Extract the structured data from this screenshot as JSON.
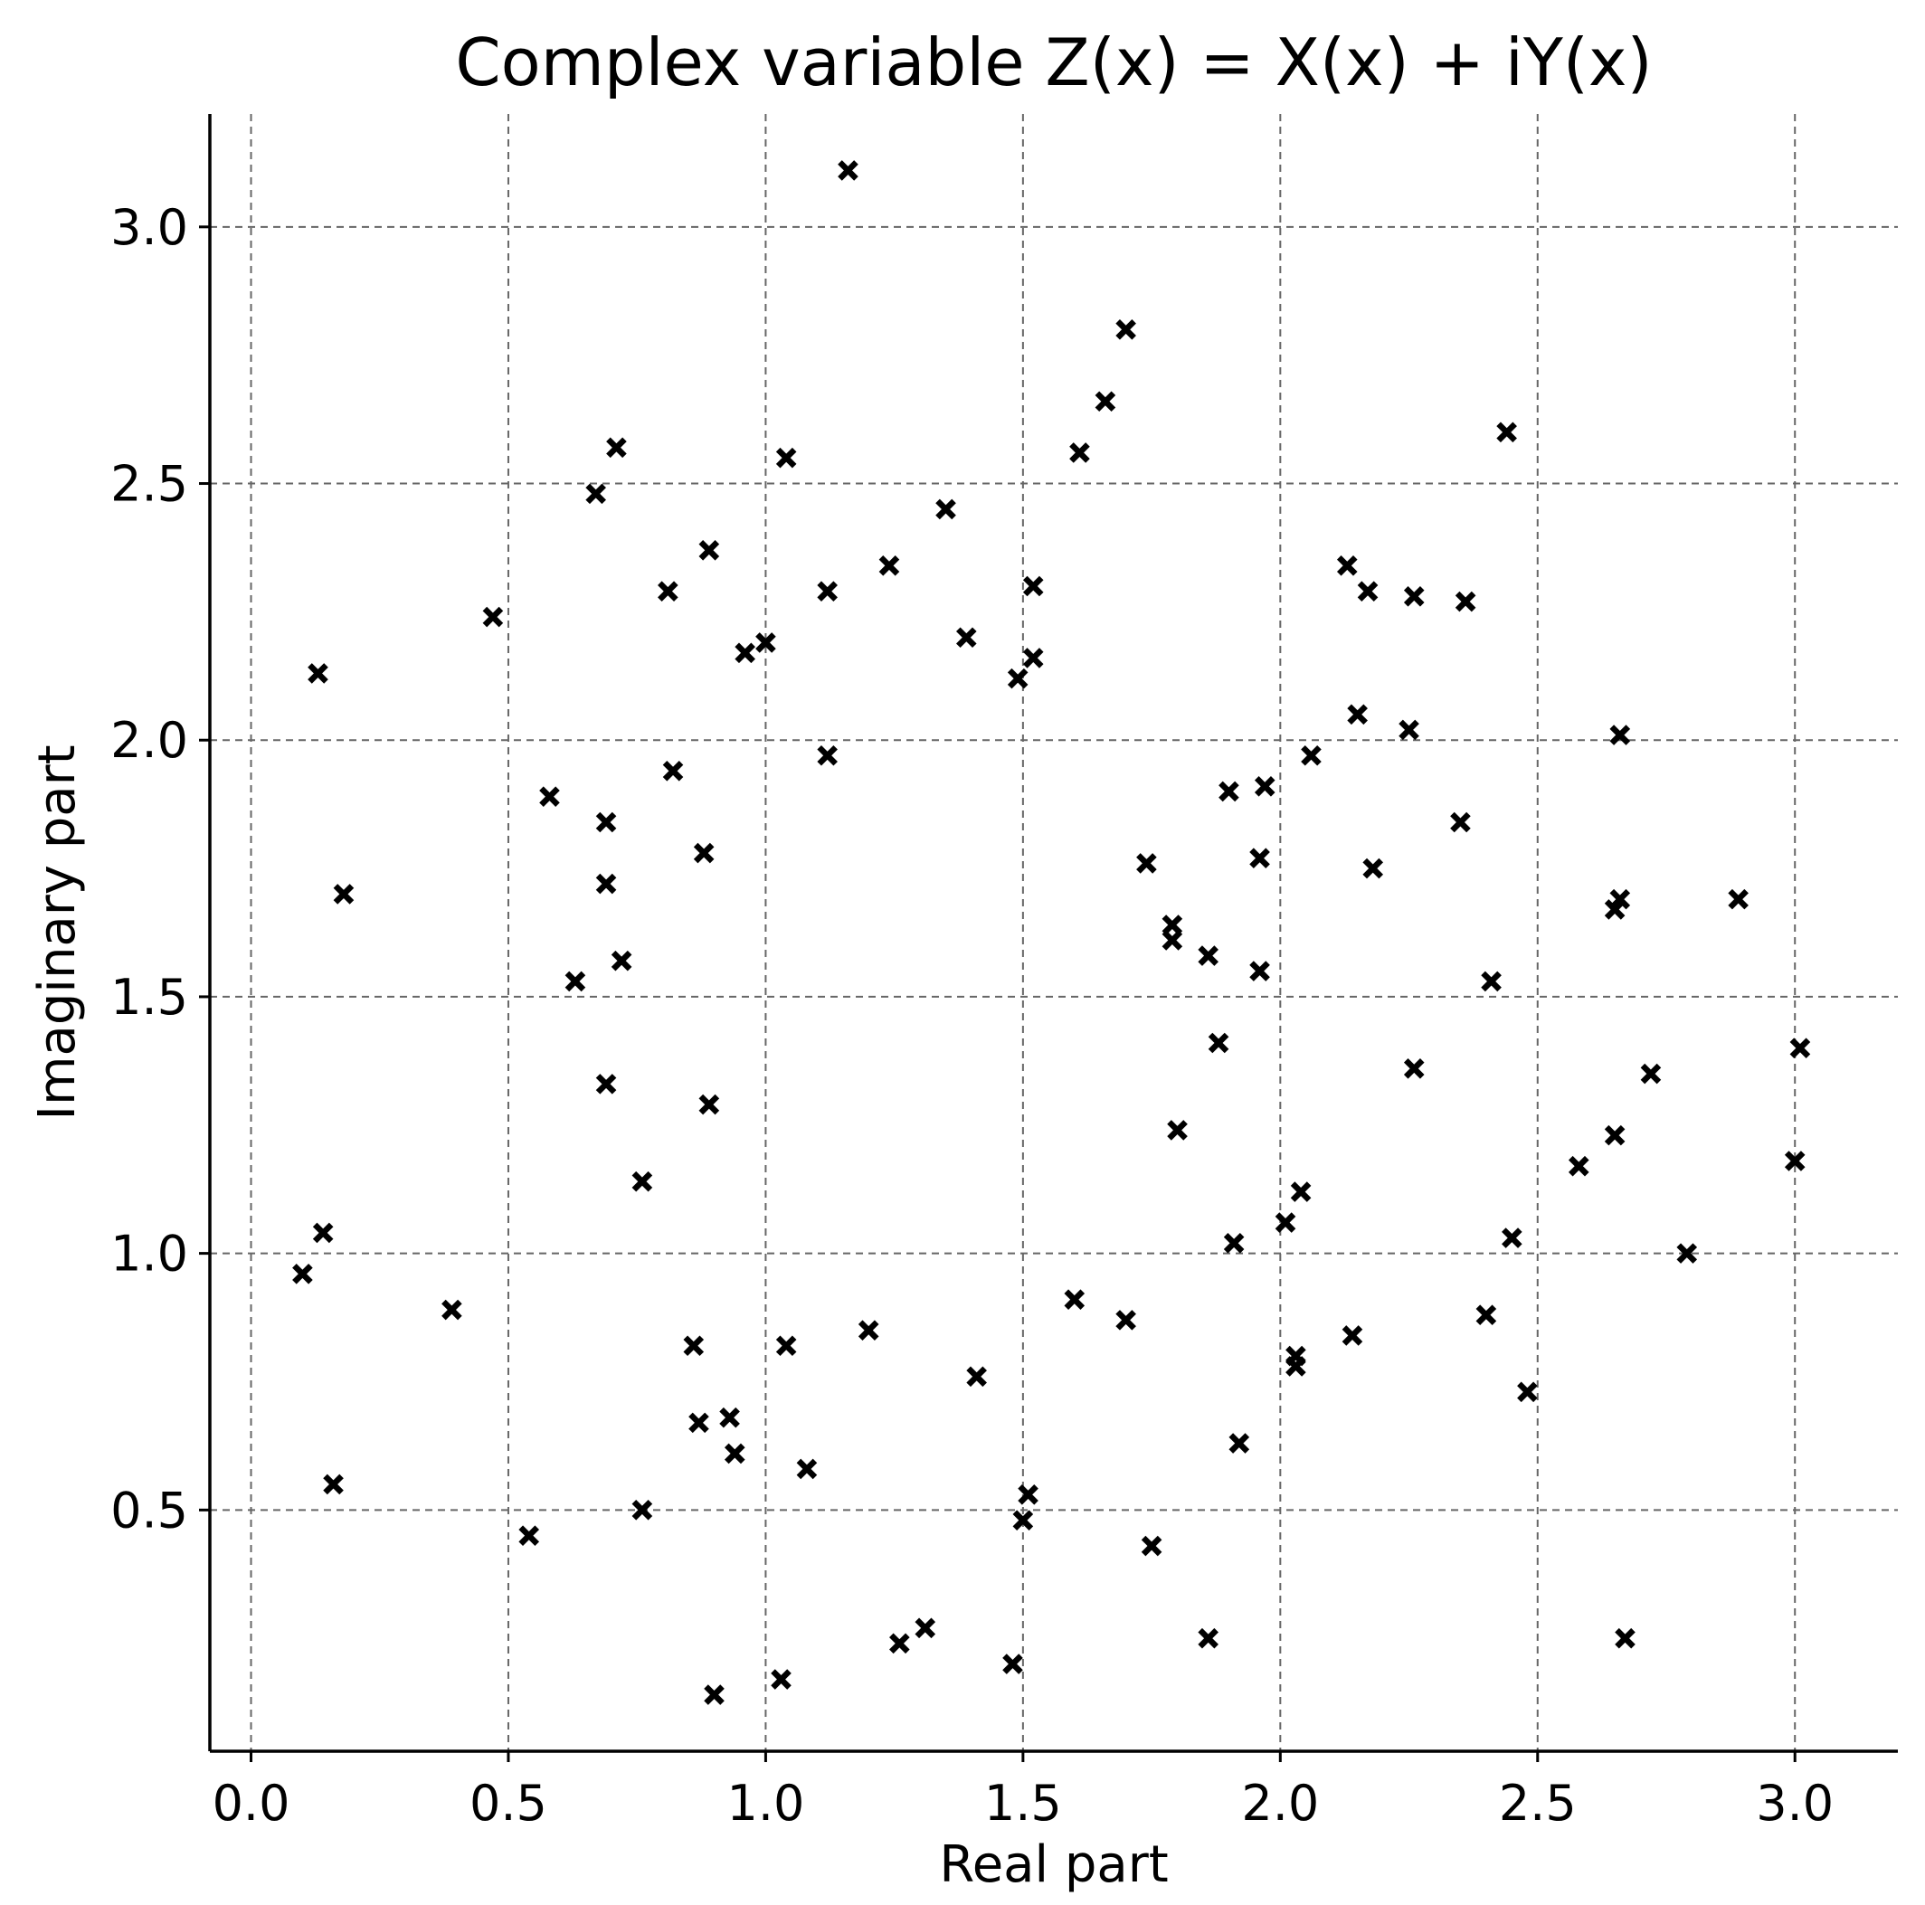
{
  "chart_data": {
    "type": "scatter",
    "title": "Complex variable Z(x) = X(x) + iY(x)",
    "xlabel": "Real part",
    "ylabel": "Imaginary part",
    "xlim": [
      -0.08,
      3.2
    ],
    "ylim": [
      0.03,
      3.22
    ],
    "xticks": [
      0.0,
      0.5,
      1.0,
      1.5,
      2.0,
      2.5,
      3.0
    ],
    "yticks": [
      0.5,
      1.0,
      1.5,
      2.0,
      2.5,
      3.0
    ],
    "xtick_labels": [
      "0.0",
      "0.5",
      "1.0",
      "1.5",
      "2.0",
      "2.5",
      "3.0"
    ],
    "ytick_labels": [
      "0.5",
      "1.0",
      "1.5",
      "2.0",
      "2.5",
      "3.0"
    ],
    "grid": true,
    "marker": "x",
    "marker_color": "#000000",
    "grid_color": "#666666",
    "points": [
      [
        1.16,
        3.11
      ],
      [
        1.7,
        2.8
      ],
      [
        1.66,
        2.66
      ],
      [
        2.44,
        2.6
      ],
      [
        1.61,
        2.56
      ],
      [
        0.71,
        2.57
      ],
      [
        1.04,
        2.55
      ],
      [
        0.67,
        2.48
      ],
      [
        1.35,
        2.45
      ],
      [
        0.89,
        2.37
      ],
      [
        1.24,
        2.34
      ],
      [
        2.13,
        2.34
      ],
      [
        0.81,
        2.29
      ],
      [
        1.12,
        2.29
      ],
      [
        1.52,
        2.3
      ],
      [
        2.17,
        2.29
      ],
      [
        2.26,
        2.28
      ],
      [
        2.36,
        2.27
      ],
      [
        0.47,
        2.24
      ],
      [
        1.39,
        2.2
      ],
      [
        1.0,
        2.19
      ],
      [
        0.96,
        2.17
      ],
      [
        1.52,
        2.16
      ],
      [
        1.49,
        2.12
      ],
      [
        0.13,
        2.13
      ],
      [
        2.15,
        2.05
      ],
      [
        2.25,
        2.02
      ],
      [
        2.66,
        2.01
      ],
      [
        1.12,
        1.97
      ],
      [
        2.06,
        1.97
      ],
      [
        0.82,
        1.94
      ],
      [
        1.9,
        1.9
      ],
      [
        1.97,
        1.91
      ],
      [
        0.58,
        1.89
      ],
      [
        0.69,
        1.84
      ],
      [
        2.35,
        1.84
      ],
      [
        0.88,
        1.78
      ],
      [
        1.96,
        1.77
      ],
      [
        1.74,
        1.76
      ],
      [
        2.18,
        1.75
      ],
      [
        0.69,
        1.72
      ],
      [
        0.18,
        1.7
      ],
      [
        2.66,
        1.69
      ],
      [
        2.89,
        1.69
      ],
      [
        2.65,
        1.67
      ],
      [
        1.79,
        1.64
      ],
      [
        1.79,
        1.61
      ],
      [
        1.86,
        1.58
      ],
      [
        0.72,
        1.57
      ],
      [
        1.96,
        1.55
      ],
      [
        0.63,
        1.53
      ],
      [
        2.41,
        1.53
      ],
      [
        1.88,
        1.41
      ],
      [
        3.01,
        1.4
      ],
      [
        2.26,
        1.36
      ],
      [
        2.72,
        1.35
      ],
      [
        0.69,
        1.33
      ],
      [
        0.89,
        1.29
      ],
      [
        1.8,
        1.24
      ],
      [
        2.65,
        1.23
      ],
      [
        3.0,
        1.18
      ],
      [
        2.58,
        1.17
      ],
      [
        0.76,
        1.14
      ],
      [
        2.04,
        1.12
      ],
      [
        2.01,
        1.06
      ],
      [
        0.14,
        1.04
      ],
      [
        1.91,
        1.02
      ],
      [
        2.45,
        1.03
      ],
      [
        2.79,
        1.0
      ],
      [
        0.1,
        0.96
      ],
      [
        1.6,
        0.91
      ],
      [
        0.39,
        0.89
      ],
      [
        2.4,
        0.88
      ],
      [
        1.7,
        0.87
      ],
      [
        1.2,
        0.85
      ],
      [
        2.14,
        0.84
      ],
      [
        0.86,
        0.82
      ],
      [
        1.04,
        0.82
      ],
      [
        2.03,
        0.8
      ],
      [
        2.03,
        0.78
      ],
      [
        1.41,
        0.76
      ],
      [
        2.48,
        0.73
      ],
      [
        0.93,
        0.68
      ],
      [
        0.87,
        0.67
      ],
      [
        1.92,
        0.63
      ],
      [
        0.94,
        0.61
      ],
      [
        1.08,
        0.58
      ],
      [
        0.16,
        0.55
      ],
      [
        1.51,
        0.53
      ],
      [
        0.76,
        0.5
      ],
      [
        1.5,
        0.48
      ],
      [
        0.54,
        0.45
      ],
      [
        1.75,
        0.43
      ],
      [
        1.31,
        0.27
      ],
      [
        1.86,
        0.25
      ],
      [
        2.67,
        0.25
      ],
      [
        1.26,
        0.24
      ],
      [
        1.48,
        0.2
      ],
      [
        1.03,
        0.17
      ],
      [
        0.9,
        0.14
      ]
    ]
  }
}
